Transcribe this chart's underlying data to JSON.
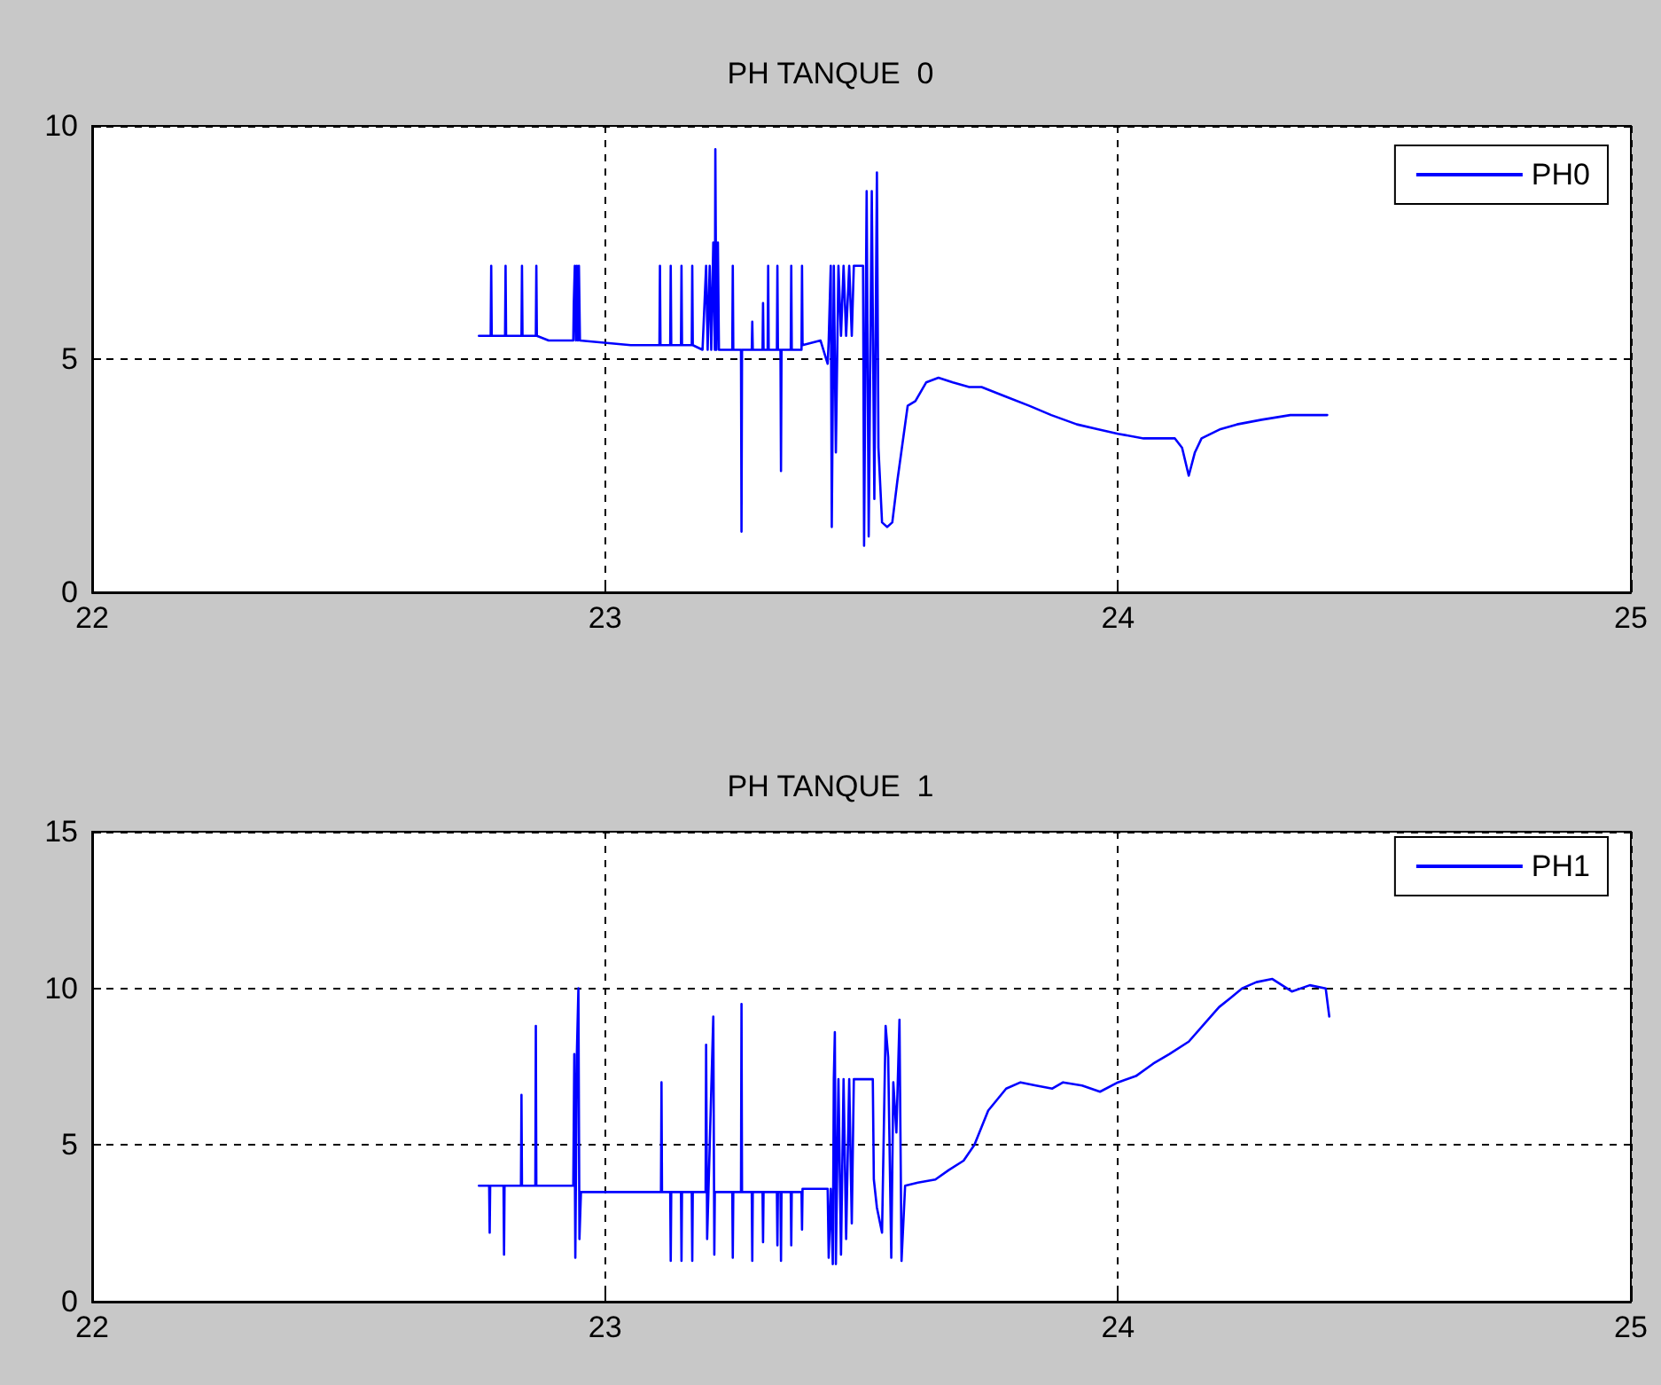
{
  "chart_data": [
    {
      "type": "line",
      "title": "PH TANQUE  0",
      "xlim": [
        22,
        25
      ],
      "xticks": [
        22,
        23,
        24,
        25
      ],
      "ylim": [
        0,
        10
      ],
      "yticks": [
        0,
        5,
        10
      ],
      "grid": true,
      "legend": "top right",
      "marker": "none",
      "line_style": "solid",
      "series": [
        {
          "name": "PH0",
          "color": "#0000ff",
          "x": [
            22.754,
            22.777,
            22.778,
            22.779,
            22.805,
            22.806,
            22.807,
            22.837,
            22.838,
            22.839,
            22.865,
            22.866,
            22.867,
            22.89,
            22.938,
            22.939,
            22.941,
            22.943,
            22.945,
            22.947,
            22.949,
            22.951,
            23.05,
            23.1,
            23.106,
            23.107,
            23.108,
            23.127,
            23.128,
            23.129,
            23.148,
            23.149,
            23.15,
            23.169,
            23.17,
            23.171,
            23.19,
            23.197,
            23.2,
            23.204,
            23.207,
            23.211,
            23.214,
            23.215,
            23.217,
            23.22,
            23.222,
            23.248,
            23.249,
            23.25,
            23.265,
            23.266,
            23.267,
            23.286,
            23.287,
            23.288,
            23.307,
            23.308,
            23.309,
            23.317,
            23.318,
            23.319,
            23.335,
            23.336,
            23.337,
            23.342,
            23.343,
            23.344,
            23.362,
            23.363,
            23.364,
            23.383,
            23.384,
            23.385,
            23.42,
            23.434,
            23.436,
            23.44,
            23.442,
            23.446,
            23.45,
            23.455,
            23.46,
            23.465,
            23.47,
            23.476,
            23.481,
            23.485,
            23.503,
            23.505,
            23.51,
            23.514,
            23.52,
            23.525,
            23.53,
            23.533,
            23.54,
            23.55,
            23.56,
            23.57,
            23.59,
            23.605,
            23.626,
            23.65,
            23.678,
            23.71,
            23.734,
            23.78,
            23.827,
            23.87,
            23.92,
            23.96,
            24.0,
            24.05,
            24.111,
            24.125,
            24.138,
            24.15,
            24.163,
            24.2,
            24.232,
            24.28,
            24.336,
            24.37,
            24.408
          ],
          "values": [
            5.5,
            5.5,
            7.0,
            5.5,
            5.5,
            7.0,
            5.5,
            5.5,
            7.0,
            5.5,
            5.5,
            7.0,
            5.5,
            5.4,
            5.4,
            6.2,
            7.0,
            5.4,
            7.0,
            5.4,
            7.0,
            5.4,
            5.3,
            5.3,
            5.3,
            7.0,
            5.3,
            5.3,
            7.0,
            5.3,
            5.3,
            7.0,
            5.3,
            5.3,
            7.0,
            5.3,
            5.2,
            7.0,
            5.2,
            7.0,
            5.2,
            7.5,
            5.2,
            9.5,
            5.2,
            7.5,
            5.2,
            5.2,
            7.0,
            5.2,
            5.2,
            1.3,
            5.2,
            5.2,
            5.8,
            5.2,
            5.2,
            6.2,
            5.2,
            5.2,
            7.0,
            5.2,
            5.2,
            7.0,
            5.2,
            5.2,
            2.6,
            5.2,
            5.2,
            7.0,
            5.2,
            5.2,
            7.0,
            5.3,
            5.4,
            4.9,
            5.4,
            7.0,
            1.4,
            7.0,
            3.0,
            7.0,
            5.5,
            7.0,
            5.5,
            7.0,
            5.5,
            7.0,
            7.0,
            1.0,
            8.6,
            1.2,
            8.6,
            2.0,
            9.0,
            3.1,
            1.5,
            1.4,
            1.5,
            2.4,
            4.0,
            4.1,
            4.5,
            4.6,
            4.5,
            4.4,
            4.4,
            4.2,
            4.0,
            3.8,
            3.6,
            3.5,
            3.4,
            3.3,
            3.3,
            3.1,
            2.5,
            3.0,
            3.3,
            3.5,
            3.6,
            3.7,
            3.8,
            3.8,
            3.8
          ]
        }
      ]
    },
    {
      "type": "line",
      "title": "PH TANQUE  1",
      "xlim": [
        22,
        25
      ],
      "xticks": [
        22,
        23,
        24,
        25
      ],
      "ylim": [
        0,
        15
      ],
      "yticks": [
        0,
        5,
        10,
        15
      ],
      "grid": true,
      "legend": "top right",
      "marker": "none",
      "line_style": "solid",
      "series": [
        {
          "name": "PH1",
          "color": "#0000ff",
          "x": [
            22.754,
            22.774,
            22.775,
            22.776,
            22.802,
            22.803,
            22.804,
            22.836,
            22.837,
            22.838,
            22.864,
            22.865,
            22.866,
            22.938,
            22.94,
            22.942,
            22.945,
            22.948,
            22.95,
            22.953,
            23.05,
            23.109,
            23.11,
            23.111,
            23.127,
            23.128,
            23.129,
            23.148,
            23.149,
            23.15,
            23.169,
            23.17,
            23.171,
            23.196,
            23.197,
            23.199,
            23.211,
            23.213,
            23.214,
            23.248,
            23.249,
            23.25,
            23.265,
            23.266,
            23.267,
            23.286,
            23.287,
            23.288,
            23.307,
            23.308,
            23.309,
            23.335,
            23.336,
            23.337,
            23.342,
            23.343,
            23.344,
            23.362,
            23.363,
            23.364,
            23.383,
            23.384,
            23.385,
            23.434,
            23.436,
            23.44,
            23.444,
            23.446,
            23.448,
            23.45,
            23.455,
            23.46,
            23.465,
            23.47,
            23.476,
            23.481,
            23.485,
            23.522,
            23.524,
            23.53,
            23.54,
            23.547,
            23.552,
            23.558,
            23.562,
            23.568,
            23.574,
            23.578,
            23.585,
            23.61,
            23.644,
            23.67,
            23.699,
            23.72,
            23.747,
            23.782,
            23.81,
            23.84,
            23.872,
            23.893,
            23.93,
            23.965,
            24.0,
            24.035,
            24.069,
            24.1,
            24.138,
            24.17,
            24.197,
            24.22,
            24.242,
            24.27,
            24.301,
            24.32,
            24.339,
            24.374,
            24.405,
            24.412
          ],
          "values": [
            3.7,
            3.7,
            2.2,
            3.7,
            3.7,
            1.5,
            3.7,
            3.7,
            6.6,
            3.7,
            3.7,
            8.8,
            3.7,
            3.7,
            7.9,
            1.4,
            7.9,
            10.0,
            2.0,
            3.5,
            3.5,
            3.5,
            7.0,
            3.5,
            3.5,
            1.3,
            3.5,
            3.5,
            1.3,
            3.5,
            3.5,
            1.3,
            3.5,
            3.5,
            8.2,
            2.0,
            9.1,
            1.5,
            3.5,
            3.5,
            1.4,
            3.5,
            3.5,
            9.5,
            3.5,
            3.5,
            1.3,
            3.5,
            3.5,
            1.9,
            3.5,
            3.5,
            1.8,
            3.5,
            3.5,
            1.3,
            3.5,
            3.5,
            1.8,
            3.5,
            3.5,
            2.3,
            3.6,
            3.6,
            1.4,
            3.6,
            1.2,
            7.1,
            8.6,
            1.2,
            7.1,
            1.5,
            7.1,
            2.0,
            7.1,
            2.5,
            7.1,
            7.1,
            3.9,
            3.0,
            2.2,
            8.8,
            7.8,
            1.4,
            7.0,
            5.4,
            9.0,
            1.3,
            3.7,
            3.8,
            3.9,
            4.2,
            4.5,
            5.0,
            6.1,
            6.8,
            7.0,
            6.9,
            6.8,
            7.0,
            6.9,
            6.7,
            7.0,
            7.2,
            7.6,
            7.9,
            8.3,
            8.9,
            9.4,
            9.7,
            10.0,
            10.2,
            10.3,
            10.1,
            9.9,
            10.1,
            10.0,
            9.1
          ]
        }
      ]
    }
  ]
}
